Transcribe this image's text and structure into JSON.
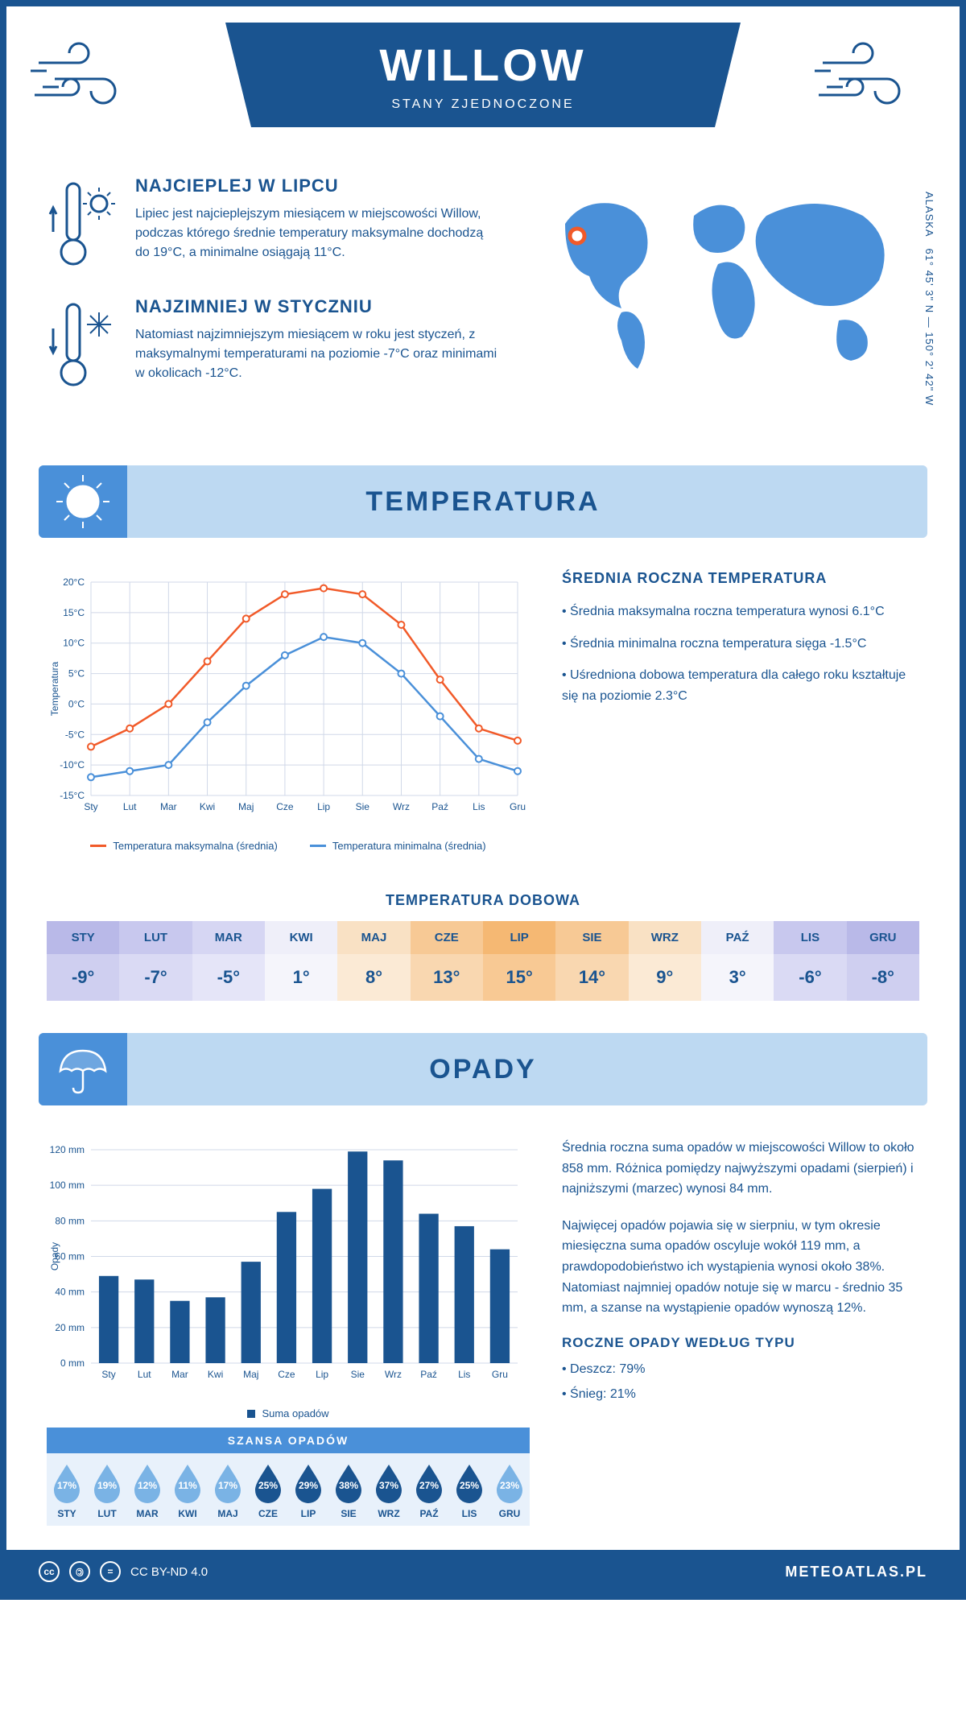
{
  "header": {
    "title": "WILLOW",
    "subtitle": "STANY ZJEDNOCZONE"
  },
  "intro": {
    "hot": {
      "title": "NAJCIEPLEJ W LIPCU",
      "text": "Lipiec jest najcieplejszym miesiącem w miejscowości Willow, podczas którego średnie temperatury maksymalne dochodzą do 19°C, a minimalne osiągają 11°C."
    },
    "cold": {
      "title": "NAJZIMNIEJ W STYCZNIU",
      "text": "Natomiast najzimniejszym miesiącem w roku jest styczeń, z maksymalnymi temperaturami na poziomie -7°C oraz minimami w okolicach -12°C."
    },
    "region": "ALASKA",
    "coords": "61° 45' 3\" N — 150° 2' 42\" W"
  },
  "temp_section": {
    "title": "TEMPERATURA",
    "chart": {
      "type": "line",
      "months": [
        "Sty",
        "Lut",
        "Mar",
        "Kwi",
        "Maj",
        "Cze",
        "Lip",
        "Sie",
        "Wrz",
        "Paź",
        "Lis",
        "Gru"
      ],
      "series": [
        {
          "name": "Temperatura maksymalna (średnia)",
          "color": "#f15a29",
          "values": [
            -7,
            -4,
            0,
            7,
            14,
            18,
            19,
            18,
            13,
            4,
            -4,
            -6
          ]
        },
        {
          "name": "Temperatura minimalna (średnia)",
          "color": "#4a90d9",
          "values": [
            -12,
            -11,
            -10,
            -3,
            3,
            8,
            11,
            10,
            5,
            -2,
            -9,
            -11
          ]
        }
      ],
      "ylabel": "Temperatura",
      "ylim": [
        -15,
        20
      ],
      "ytick_step": 5,
      "grid_color": "#d0d8e8",
      "background_color": "#ffffff",
      "line_width": 2.5,
      "marker": "circle",
      "marker_size": 4
    },
    "facts": {
      "title": "ŚREDNIA ROCZNA TEMPERATURA",
      "b1": "• Średnia maksymalna roczna temperatura wynosi 6.1°C",
      "b2": "• Średnia minimalna roczna temperatura sięga -1.5°C",
      "b3": "• Uśredniona dobowa temperatura dla całego roku kształtuje się na poziomie 2.3°C"
    },
    "daily": {
      "title": "TEMPERATURA DOBOWA",
      "months": [
        "STY",
        "LUT",
        "MAR",
        "KWI",
        "MAJ",
        "CZE",
        "LIP",
        "SIE",
        "WRZ",
        "PAŹ",
        "LIS",
        "GRU"
      ],
      "values": [
        "-9°",
        "-7°",
        "-5°",
        "1°",
        "8°",
        "13°",
        "15°",
        "14°",
        "9°",
        "3°",
        "-6°",
        "-8°"
      ],
      "head_colors": [
        "#b9b9e8",
        "#c8c8ee",
        "#d6d6f3",
        "#efeff9",
        "#f9e1c4",
        "#f7c995",
        "#f5b873",
        "#f7c995",
        "#f9e1c4",
        "#efeff9",
        "#c8c8ee",
        "#b9b9e8"
      ],
      "val_colors": [
        "#cfcff0",
        "#dadaf4",
        "#e5e5f8",
        "#f5f5fb",
        "#fbead5",
        "#f9d7b0",
        "#f8c994",
        "#f9d7b0",
        "#fbead5",
        "#f5f5fb",
        "#dadaf4",
        "#cfcff0"
      ]
    }
  },
  "precip_section": {
    "title": "OPADY",
    "chart": {
      "type": "bar",
      "months": [
        "Sty",
        "Lut",
        "Mar",
        "Kwi",
        "Maj",
        "Cze",
        "Lip",
        "Sie",
        "Wrz",
        "Paź",
        "Lis",
        "Gru"
      ],
      "values": [
        49,
        47,
        35,
        37,
        57,
        85,
        98,
        119,
        114,
        84,
        77,
        64
      ],
      "bar_color": "#1a5490",
      "ylabel": "Opady",
      "ylim": [
        0,
        120
      ],
      "ytick_step": 20,
      "grid_color": "#d0d8e8",
      "bar_width": 0.55,
      "legend": "Suma opadów"
    },
    "text": {
      "p1": "Średnia roczna suma opadów w miejscowości Willow to około 858 mm. Różnica pomiędzy najwyższymi opadami (sierpień) i najniższymi (marzec) wynosi 84 mm.",
      "p2": "Najwięcej opadów pojawia się w sierpniu, w tym okresie miesięczna suma opadów oscyluje wokół 119 mm, a prawdopodobieństwo ich wystąpienia wynosi około 38%. Natomiast najmniej opadów notuje się w marcu - średnio 35 mm, a szanse na wystąpienie opadów wynoszą 12%."
    },
    "by_type": {
      "title": "ROCZNE OPADY WEDŁUG TYPU",
      "b1": "• Deszcz: 79%",
      "b2": "• Śnieg: 21%"
    },
    "chance": {
      "title": "SZANSA OPADÓW",
      "months": [
        "STY",
        "LUT",
        "MAR",
        "KWI",
        "MAJ",
        "CZE",
        "LIP",
        "SIE",
        "WRZ",
        "PAŹ",
        "LIS",
        "GRU"
      ],
      "values": [
        "17%",
        "19%",
        "12%",
        "11%",
        "17%",
        "25%",
        "29%",
        "38%",
        "37%",
        "27%",
        "25%",
        "23%"
      ],
      "light_color": "#7ab3e5",
      "dark_color": "#1a5490",
      "dark_threshold": 25
    }
  },
  "footer": {
    "license": "CC BY-ND 4.0",
    "site": "METEOATLAS.PL"
  },
  "colors": {
    "primary": "#1a5490",
    "accent": "#4a90d9",
    "section_bg": "#bdd9f2"
  }
}
